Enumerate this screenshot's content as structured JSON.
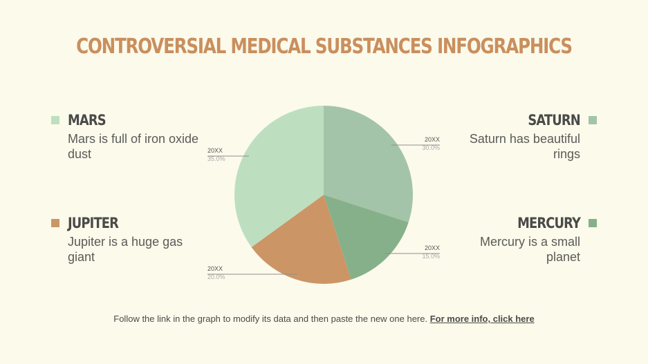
{
  "title": "CONTROVERSIAL MEDICAL SUBSTANCES INFOGRAPHICS",
  "items": [
    {
      "name": "MARS",
      "desc": "Mars is full of iron oxide dust",
      "color": "#bddfc0"
    },
    {
      "name": "JUPITER",
      "desc": "Jupiter is a huge gas giant",
      "color": "#cc9566"
    },
    {
      "name": "SATURN",
      "desc": "Saturn has beautiful rings",
      "color": "#a3c4a8"
    },
    {
      "name": "MERCURY",
      "desc": "Mercury is a small planet",
      "color": "#86b08a"
    }
  ],
  "footer": {
    "text": "Follow the link in the graph to modify its data and then paste the new one here. ",
    "link": "For more info, click here"
  },
  "chart_data": {
    "type": "pie",
    "start": "top, clockwise",
    "slices": [
      {
        "label": "20XX",
        "value": 30.0,
        "value_label": "30.0%",
        "color": "#a3c4a8"
      },
      {
        "label": "20XX",
        "value": 15.0,
        "value_label": "15.0%",
        "color": "#86b08a"
      },
      {
        "label": "20XX",
        "value": 20.0,
        "value_label": "20.0%",
        "color": "#cc9566"
      },
      {
        "label": "20XX",
        "value": 35.0,
        "value_label": "35.0%",
        "color": "#bddfc0"
      }
    ]
  }
}
